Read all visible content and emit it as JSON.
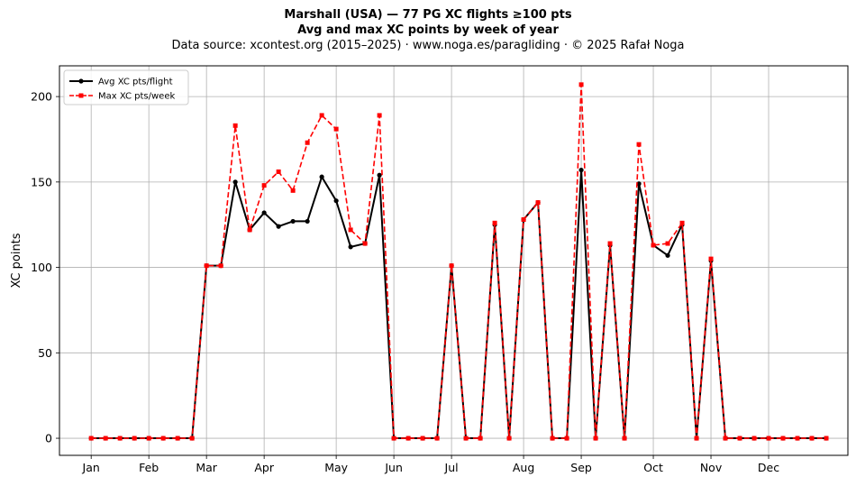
{
  "title": {
    "line1": "Marshall (USA)  —  77 PG XC flights ≥100 pts",
    "line2": "Avg and max XC points by week of year",
    "line3": "Data source: xcontest.org (2015–2025)  ·  www.noga.es/paragliding  ·  © 2025 Rafał Noga"
  },
  "chart_data": {
    "type": "line",
    "xlabel": "",
    "ylabel": "XC points",
    "x_unit": "week of year",
    "xlim": [
      -1.2,
      53.5
    ],
    "ylim": [
      -10,
      218
    ],
    "yticks": [
      0,
      50,
      100,
      150,
      200
    ],
    "grid": true,
    "legend_position": "top-left",
    "month_ticks": [
      {
        "label": "Jan",
        "week": 1
      },
      {
        "label": "Feb",
        "week": 5
      },
      {
        "label": "Mar",
        "week": 9
      },
      {
        "label": "Apr",
        "week": 13
      },
      {
        "label": "May",
        "week": 18
      },
      {
        "label": "Jun",
        "week": 22
      },
      {
        "label": "Jul",
        "week": 26
      },
      {
        "label": "Aug",
        "week": 31
      },
      {
        "label": "Sep",
        "week": 35
      },
      {
        "label": "Oct",
        "week": 40
      },
      {
        "label": "Nov",
        "week": 44
      },
      {
        "label": "Dec",
        "week": 48
      }
    ],
    "x": [
      1,
      2,
      3,
      4,
      5,
      6,
      7,
      8,
      9,
      10,
      11,
      12,
      13,
      14,
      15,
      16,
      17,
      18,
      19,
      20,
      21,
      22,
      23,
      24,
      25,
      26,
      27,
      28,
      29,
      30,
      31,
      32,
      33,
      34,
      35,
      36,
      37,
      38,
      39,
      40,
      41,
      42,
      43,
      44,
      45,
      46,
      47,
      48,
      49,
      50,
      51,
      52
    ],
    "series": [
      {
        "name": "Avg XC pts/flight",
        "color": "#000000",
        "style": "solid",
        "marker": "circle",
        "values": [
          0,
          0,
          0,
          0,
          0,
          0,
          0,
          0,
          101,
          101,
          150,
          122,
          132,
          124,
          127,
          127,
          153,
          139,
          112,
          114,
          154,
          0,
          0,
          0,
          0,
          101,
          0,
          0,
          125,
          0,
          128,
          138,
          0,
          0,
          157,
          0,
          113,
          0,
          149,
          113,
          107,
          125,
          0,
          104,
          0,
          0,
          0,
          0,
          0,
          0,
          0,
          0
        ]
      },
      {
        "name": "Max XC pts/week",
        "color": "#ff0000",
        "style": "dashed",
        "marker": "square",
        "values": [
          0,
          0,
          0,
          0,
          0,
          0,
          0,
          0,
          101,
          101,
          183,
          122,
          148,
          156,
          145,
          173,
          189,
          181,
          122,
          114,
          189,
          0,
          0,
          0,
          0,
          101,
          0,
          0,
          126,
          0,
          128,
          138,
          0,
          0,
          207,
          0,
          114,
          0,
          172,
          113,
          114,
          126,
          0,
          105,
          0,
          0,
          0,
          0,
          0,
          0,
          0,
          0
        ]
      }
    ]
  }
}
